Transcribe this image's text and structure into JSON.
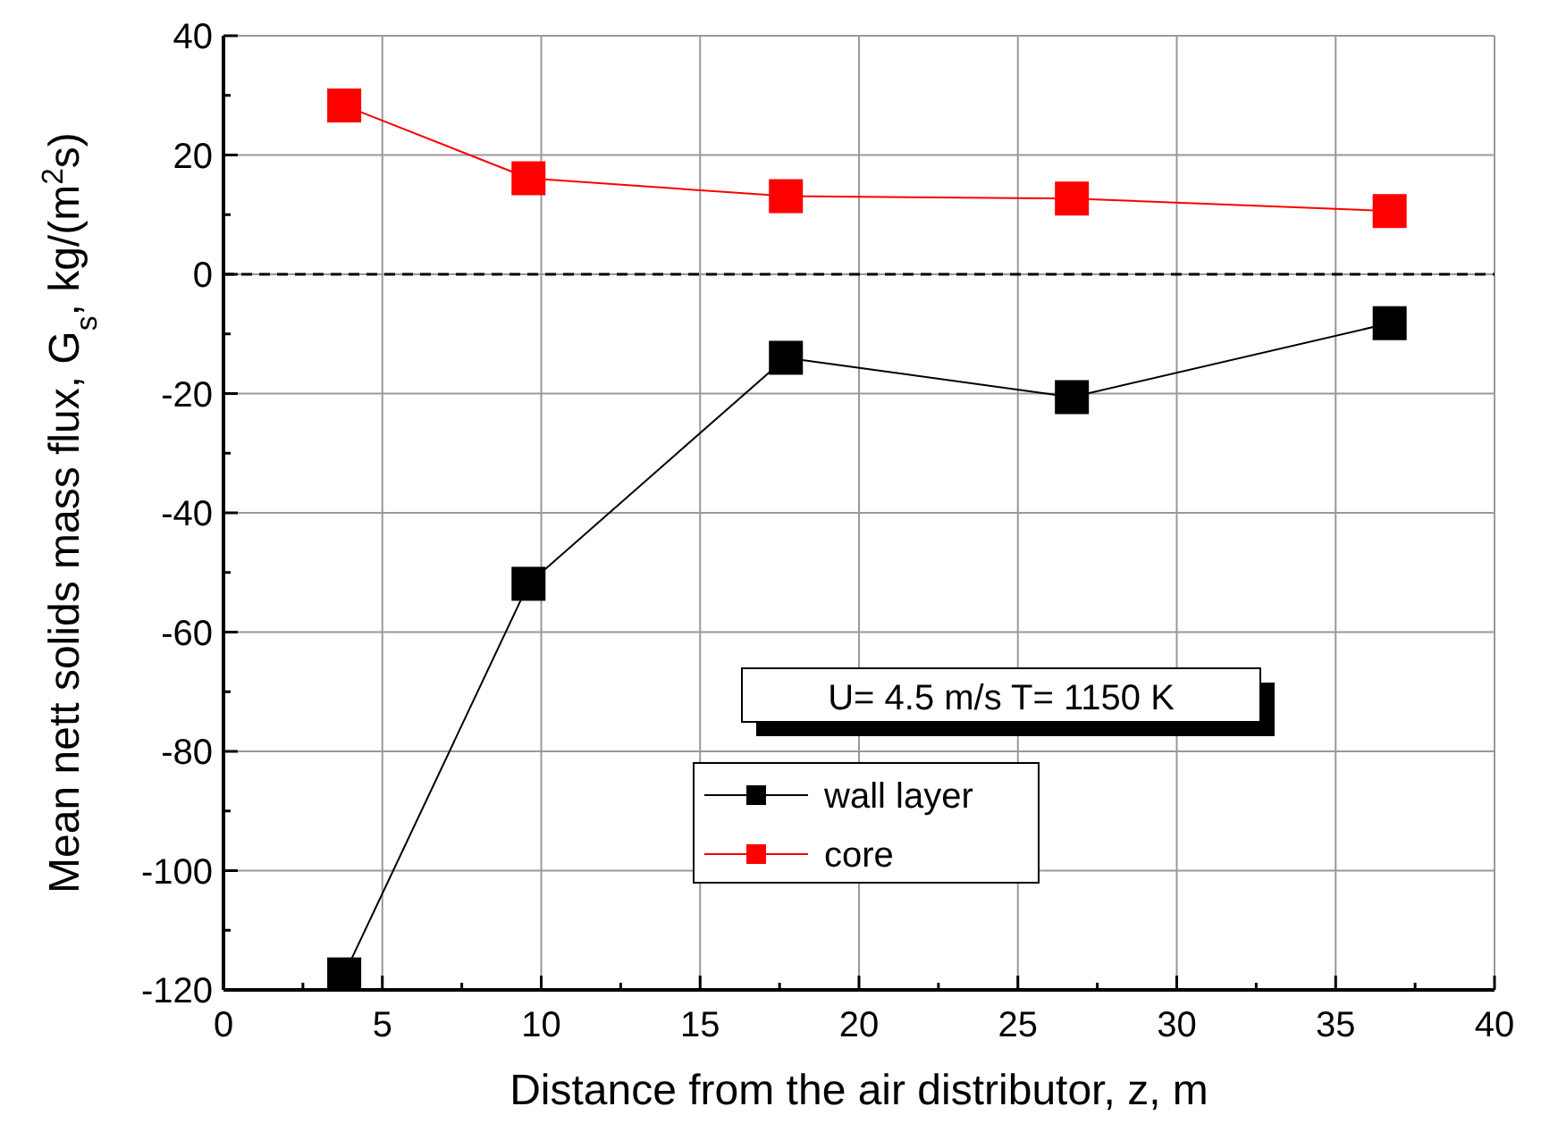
{
  "chart_data": {
    "type": "line",
    "xlabel": "Distance from the air distributor, z, m",
    "ylabel": "Mean nett solids mass flux, G$_{s}$, kg/(m$^{2}$s)",
    "x": [
      3.8,
      9.6,
      17.7,
      26.7,
      36.7
    ],
    "series": [
      {
        "name": "wall layer",
        "color": "#000000",
        "values": [
          -117.4,
          -51.9,
          -14.0,
          -20.6,
          -8.2
        ]
      },
      {
        "name": "core",
        "color": "#ff0000",
        "values": [
          28.3,
          16.1,
          13.1,
          12.7,
          10.6
        ]
      }
    ],
    "xlim": [
      0,
      40
    ],
    "xticks": [
      0,
      {
        "value": 2.5,
        "label": null
      },
      5,
      {
        "value": 7.5,
        "label": null
      },
      10,
      {
        "value": 12.5,
        "label": null
      },
      15,
      {
        "value": 17.5,
        "label": null
      },
      20,
      {
        "value": 22.5,
        "label": null
      },
      25,
      {
        "value": 27.5,
        "label": null
      },
      30,
      {
        "value": 32.5,
        "label": null
      },
      35,
      {
        "value": 37.5,
        "label": null
      },
      40
    ],
    "ylim": [
      -120,
      40
    ],
    "yticks": [
      -120,
      {
        "value": -110,
        "label": null
      },
      -100,
      {
        "value": -90,
        "label": null
      },
      -80,
      {
        "value": -70,
        "label": null
      },
      -60,
      {
        "value": -50,
        "label": null
      },
      -40,
      {
        "value": -30,
        "label": null
      },
      -20,
      {
        "value": -10,
        "label": null
      },
      0,
      {
        "value": 10,
        "label": null
      },
      20,
      {
        "value": 30,
        "label": null
      },
      40
    ],
    "ref_lines": [
      {
        "axis": "y",
        "value": 0,
        "line_style": "dashed",
        "color": "#000000"
      }
    ],
    "annotations": [
      "U= 4.5 m/s T= 1150 K"
    ],
    "grid": true,
    "legend": "bottom",
    "marker": "square",
    "line_style": "solid"
  }
}
